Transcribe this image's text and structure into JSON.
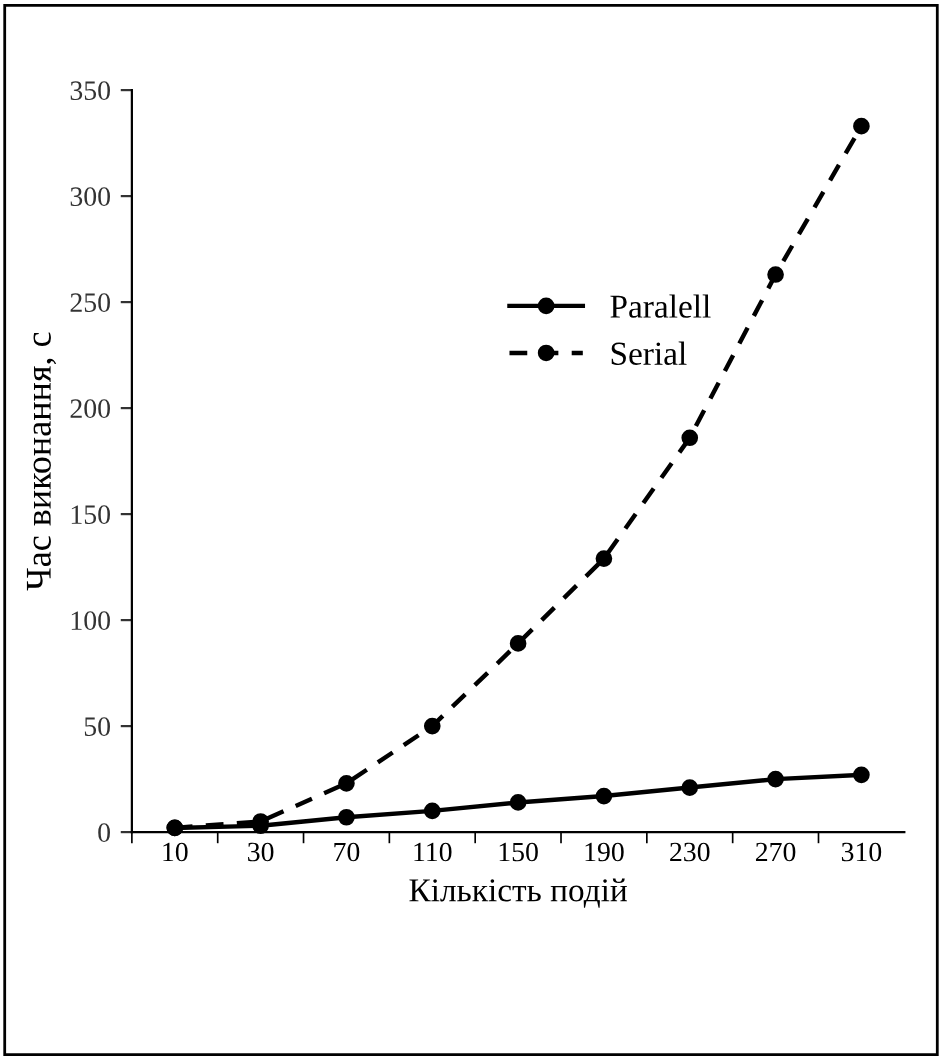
{
  "chart_data": {
    "type": "line",
    "xlabel": "Кількість подій",
    "ylabel": "Час виконання, с",
    "categories": [
      "10",
      "30",
      "70",
      "110",
      "150",
      "190",
      "230",
      "270",
      "310"
    ],
    "series": [
      {
        "name": "Paralell",
        "color": "#000000",
        "line_style": "solid",
        "values": [
          2,
          3,
          7,
          10,
          14,
          17,
          21,
          25,
          27
        ]
      },
      {
        "name": "Serial",
        "color": "#000000",
        "line_style": "dashed",
        "values": [
          2,
          5,
          23,
          50,
          89,
          129,
          186,
          263,
          333
        ]
      }
    ],
    "ylim": [
      0,
      350
    ],
    "yticks": [
      0,
      50,
      100,
      150,
      200,
      250,
      300,
      350
    ],
    "marker": "circle",
    "grid": false,
    "legend": "top center"
  }
}
